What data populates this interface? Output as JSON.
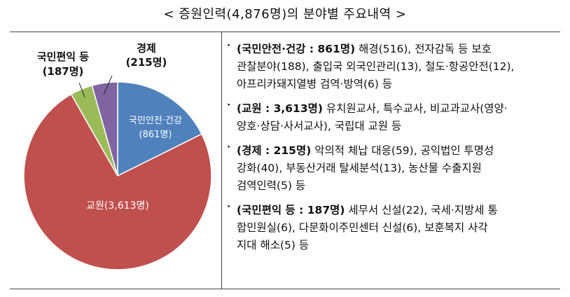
{
  "title": "< 증원인력(4,876명)의 분야별 주요내역 >",
  "chart_data": {
    "type": "pie",
    "slices": [
      {
        "label": "국민안전·건강",
        "value": 861,
        "value_label": "(861명)",
        "color": "#4f81bd"
      },
      {
        "label": "교원",
        "value": 3613,
        "value_label": "교원(3,613명)",
        "color": "#c0504d"
      },
      {
        "label": "국민편익 등",
        "value": 187,
        "value_label": "(187명)",
        "color": "#9bbb59"
      },
      {
        "label": "경제",
        "value": 215,
        "value_label": "(215명)",
        "color": "#8064a2"
      }
    ]
  },
  "items": [
    {
      "head": "(국민안전·건강 : 861명)",
      "lines": [
        " 해경(516), 전자감독 등 보호",
        "관찰분야(188), 출입국 외국인관리(13), 철도·항공안전(12),",
        "아프리카돼지열병 검역·방역(6) 등"
      ]
    },
    {
      "head": "(교원 : 3,613명)",
      "lines": [
        " 유치원교사, 특수교사, 비교과교사(영양·",
        "양호·상담·사서교사), 국립대 교원 등"
      ]
    },
    {
      "head": "(경제 : 215명)",
      "lines": [
        " 악의적 체납 대응(59), 공익법인 투명성",
        "강화(40), 부동산거래 탈세분석(13), 농산물 수출지원",
        "검역인력(5) 등"
      ]
    },
    {
      "head": "(국민편익 등 : 187명)",
      "lines": [
        " 세무서 신설(22), 국세·지방세 통",
        "합민원실(6), 다문화이주민센터 신설(6), 보훈복지 사각",
        "지대 해소(5) 등"
      ]
    }
  ]
}
